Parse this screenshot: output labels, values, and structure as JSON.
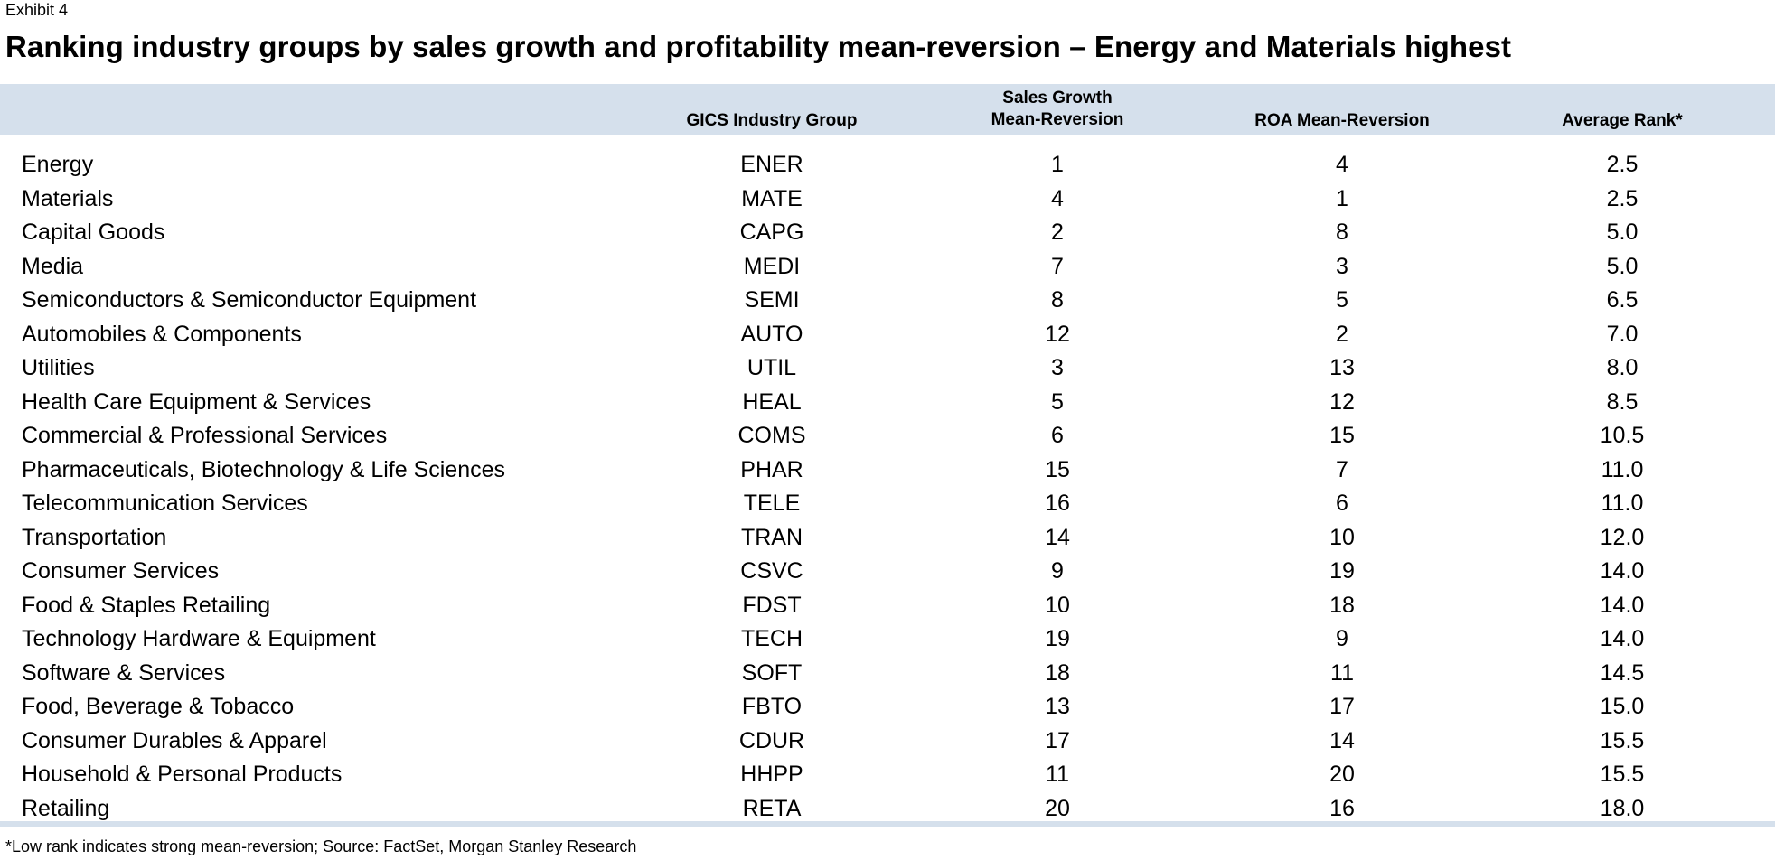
{
  "exhibit_label": "Exhibit 4",
  "title": "Ranking industry groups by sales growth and profitability mean-reversion – Energy and Materials highest",
  "colors": {
    "header_band": "#d5e0ec"
  },
  "headers": {
    "gics": "GICS Industry Group",
    "sales_line1": "Sales Growth",
    "sales_line2": "Mean-Reversion",
    "roa": "ROA Mean-Reversion",
    "avg": "Average Rank*"
  },
  "rows": [
    {
      "name": "Energy",
      "code": "ENER",
      "sales": "1",
      "roa": "4",
      "avg": "2.5"
    },
    {
      "name": "Materials",
      "code": "MATE",
      "sales": "4",
      "roa": "1",
      "avg": "2.5"
    },
    {
      "name": "Capital Goods",
      "code": "CAPG",
      "sales": "2",
      "roa": "8",
      "avg": "5.0"
    },
    {
      "name": "Media",
      "code": "MEDI",
      "sales": "7",
      "roa": "3",
      "avg": "5.0"
    },
    {
      "name": "Semiconductors & Semiconductor Equipment",
      "code": "SEMI",
      "sales": "8",
      "roa": "5",
      "avg": "6.5"
    },
    {
      "name": "Automobiles & Components",
      "code": "AUTO",
      "sales": "12",
      "roa": "2",
      "avg": "7.0"
    },
    {
      "name": "Utilities",
      "code": "UTIL",
      "sales": "3",
      "roa": "13",
      "avg": "8.0"
    },
    {
      "name": "Health Care Equipment & Services",
      "code": "HEAL",
      "sales": "5",
      "roa": "12",
      "avg": "8.5"
    },
    {
      "name": "Commercial & Professional Services",
      "code": "COMS",
      "sales": "6",
      "roa": "15",
      "avg": "10.5"
    },
    {
      "name": "Pharmaceuticals, Biotechnology & Life Sciences",
      "code": "PHAR",
      "sales": "15",
      "roa": "7",
      "avg": "11.0"
    },
    {
      "name": "Telecommunication Services",
      "code": "TELE",
      "sales": "16",
      "roa": "6",
      "avg": "11.0"
    },
    {
      "name": "Transportation",
      "code": "TRAN",
      "sales": "14",
      "roa": "10",
      "avg": "12.0"
    },
    {
      "name": "Consumer Services",
      "code": "CSVC",
      "sales": "9",
      "roa": "19",
      "avg": "14.0"
    },
    {
      "name": "Food & Staples Retailing",
      "code": "FDST",
      "sales": "10",
      "roa": "18",
      "avg": "14.0"
    },
    {
      "name": "Technology Hardware & Equipment",
      "code": "TECH",
      "sales": "19",
      "roa": "9",
      "avg": "14.0"
    },
    {
      "name": "Software & Services",
      "code": "SOFT",
      "sales": "18",
      "roa": "11",
      "avg": "14.5"
    },
    {
      "name": "Food, Beverage & Tobacco",
      "code": "FBTO",
      "sales": "13",
      "roa": "17",
      "avg": "15.0"
    },
    {
      "name": "Consumer Durables & Apparel",
      "code": "CDUR",
      "sales": "17",
      "roa": "14",
      "avg": "15.5"
    },
    {
      "name": "Household & Personal Products",
      "code": "HHPP",
      "sales": "11",
      "roa": "20",
      "avg": "15.5"
    },
    {
      "name": "Retailing",
      "code": "RETA",
      "sales": "20",
      "roa": "16",
      "avg": "18.0"
    }
  ],
  "footnote": "*Low rank indicates strong mean-reversion; Source: FactSet, Morgan Stanley Research"
}
